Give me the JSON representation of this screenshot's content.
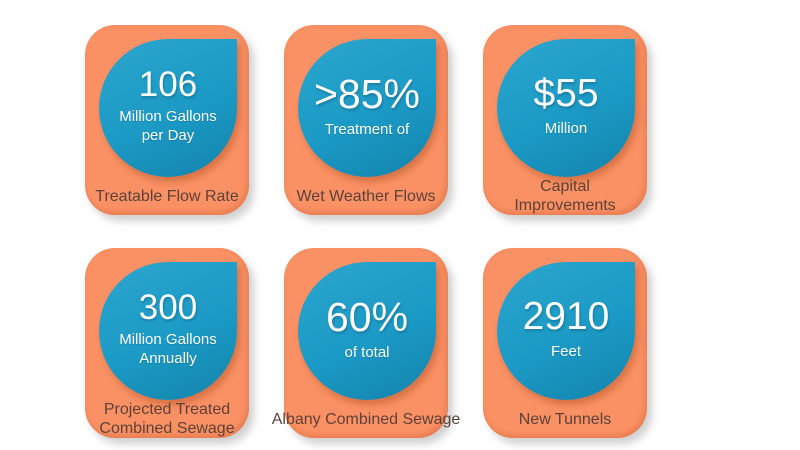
{
  "colors": {
    "page_bg": "#ffffff",
    "card_orange": "#fa9164",
    "drop_teal": "#1b9ac5",
    "drop_teal_light": "#2ba6ce",
    "drop_teal_dark": "#1283ac",
    "stat_text": "#ffffff",
    "caption_text": "#5d4138"
  },
  "cards": [
    {
      "value": "106",
      "unit_lines": [
        "Million Gallons",
        "per Day"
      ],
      "caption_lines": [
        "Treatable Flow Rate"
      ]
    },
    {
      "value": ">85%",
      "unit_lines": [
        "Treatment of"
      ],
      "caption_lines": [
        "Wet Weather Flows"
      ]
    },
    {
      "value": "$55",
      "unit_lines": [
        "Million"
      ],
      "caption_lines": [
        "Capital",
        "Improvements"
      ]
    },
    {
      "value": "300",
      "unit_lines": [
        "Million Gallons",
        "Annually"
      ],
      "caption_lines": [
        "Projected Treated",
        "Combined Sewage"
      ]
    },
    {
      "value": "60%",
      "unit_lines": [
        "of total"
      ],
      "caption_lines": [
        "Albany Combined Sewage"
      ]
    },
    {
      "value": "2910",
      "unit_lines": [
        "Feet"
      ],
      "caption_lines": [
        "New Tunnels"
      ]
    }
  ]
}
